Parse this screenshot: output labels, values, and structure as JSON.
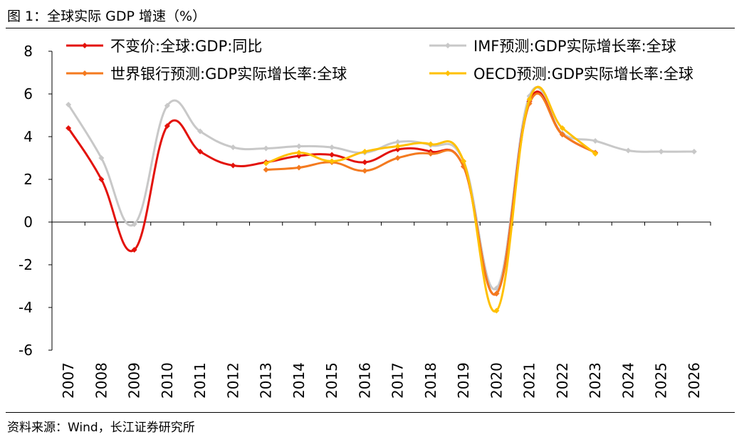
{
  "figure_title": "图 1：全球实际 GDP 增速（%）",
  "source": "资料来源：Wind，长江证券研究所",
  "chart_data": {
    "type": "line",
    "categories": [
      "2007",
      "2008",
      "2009",
      "2010",
      "2011",
      "2012",
      "2013",
      "2014",
      "2015",
      "2016",
      "2017",
      "2018",
      "2019",
      "2020",
      "2021",
      "2022",
      "2023",
      "2024",
      "2025",
      "2026"
    ],
    "ylim": [
      -6,
      8
    ],
    "yticks": [
      -6,
      -4,
      -2,
      0,
      2,
      4,
      6,
      8
    ],
    "legend_position": "top",
    "series": [
      {
        "name": "不变价:全球:GDP:同比",
        "color": "#E3120B",
        "values": [
          4.4,
          2.0,
          -1.3,
          4.5,
          3.3,
          2.65,
          2.8,
          3.1,
          3.15,
          2.8,
          3.4,
          3.3,
          2.6,
          -3.35,
          5.65,
          4.1,
          3.25,
          null,
          null,
          null
        ]
      },
      {
        "name": "IMF预测:GDP实际增长率:全球",
        "color": "#C8C8C8",
        "values": [
          5.5,
          3.0,
          -0.1,
          5.45,
          4.25,
          3.5,
          3.45,
          3.55,
          3.5,
          3.25,
          3.75,
          3.6,
          2.85,
          -3.1,
          5.9,
          4.15,
          3.8,
          3.35,
          3.3,
          3.3
        ]
      },
      {
        "name": "世界银行预测:GDP实际增长率:全球",
        "color": "#F47A1F",
        "values": [
          null,
          null,
          null,
          null,
          null,
          null,
          2.45,
          2.55,
          2.8,
          2.4,
          3.0,
          3.2,
          2.6,
          -3.35,
          5.55,
          4.1,
          3.25,
          null,
          null,
          null
        ]
      },
      {
        "name": "OECD预测:GDP实际增长率:全球",
        "color": "#FFC000",
        "values": [
          null,
          null,
          null,
          null,
          null,
          null,
          2.75,
          3.25,
          2.85,
          3.3,
          3.55,
          3.65,
          2.85,
          -4.15,
          5.75,
          4.4,
          3.2,
          null,
          null,
          null
        ]
      }
    ]
  }
}
